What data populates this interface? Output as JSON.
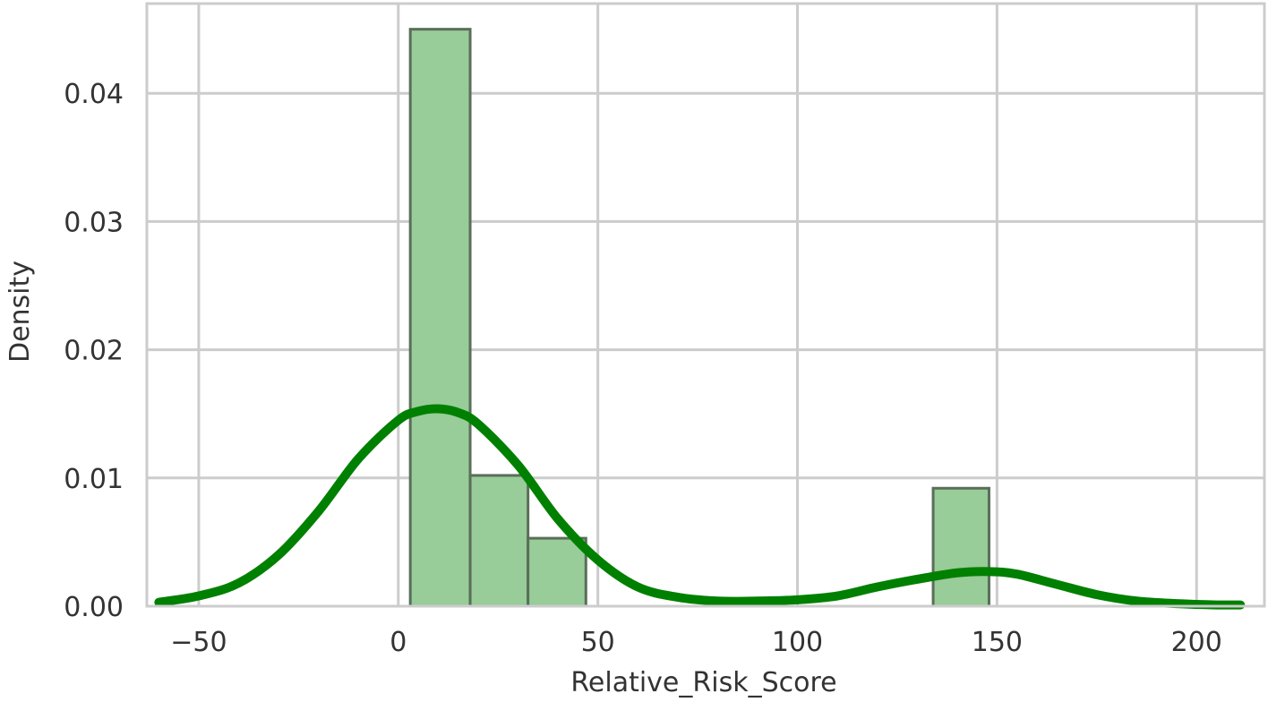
{
  "chart_data": {
    "type": "bar",
    "subtype": "histogram-with-kde",
    "xlabel": "Relative_Risk_Score",
    "ylabel": "Density",
    "xlim": [
      -63,
      217
    ],
    "ylim": [
      0,
      0.047
    ],
    "x_ticks": [
      -50,
      0,
      50,
      100,
      150,
      200
    ],
    "x_tick_labels": [
      "−50",
      "0",
      "50",
      "100",
      "150",
      "200"
    ],
    "y_ticks": [
      0.0,
      0.01,
      0.02,
      0.03,
      0.04
    ],
    "y_tick_labels": [
      "0.00",
      "0.01",
      "0.02",
      "0.03",
      "0.04"
    ],
    "grid": true,
    "bins": [
      {
        "x0": 3,
        "x1": 18,
        "density": 0.045
      },
      {
        "x0": 18,
        "x1": 32.5,
        "density": 0.0102
      },
      {
        "x0": 32.5,
        "x1": 47,
        "density": 0.0053
      },
      {
        "x0": 47,
        "x1": 61,
        "density": 0
      },
      {
        "x0": 61,
        "x1": 76,
        "density": 0
      },
      {
        "x0": 76,
        "x1": 90,
        "density": 0
      },
      {
        "x0": 90,
        "x1": 105,
        "density": 0
      },
      {
        "x0": 105,
        "x1": 119,
        "density": 0
      },
      {
        "x0": 119,
        "x1": 134,
        "density": 0
      },
      {
        "x0": 134,
        "x1": 148,
        "density": 0.0092
      }
    ],
    "kde": {
      "x": [
        -60,
        -50,
        -40,
        -30,
        -20,
        -10,
        0,
        5,
        10,
        15,
        20,
        30,
        40,
        50,
        60,
        70,
        80,
        90,
        100,
        110,
        120,
        130,
        140,
        148,
        155,
        165,
        175,
        185,
        195,
        205,
        211
      ],
      "y": [
        0.0003,
        0.0008,
        0.0018,
        0.004,
        0.0074,
        0.0115,
        0.0145,
        0.0152,
        0.0154,
        0.0151,
        0.0142,
        0.011,
        0.0068,
        0.0036,
        0.0015,
        0.0007,
        0.0004,
        0.0004,
        0.0005,
        0.0008,
        0.0015,
        0.0021,
        0.0026,
        0.0027,
        0.0025,
        0.0017,
        0.0009,
        0.0004,
        0.0002,
        0.0001,
        0.0001
      ]
    },
    "colors": {
      "bar_fill": "#98cc98",
      "bar_edge": "#5a6e5a",
      "kde_line": "#008000",
      "grid": "#cccccc",
      "text": "#333333"
    }
  }
}
